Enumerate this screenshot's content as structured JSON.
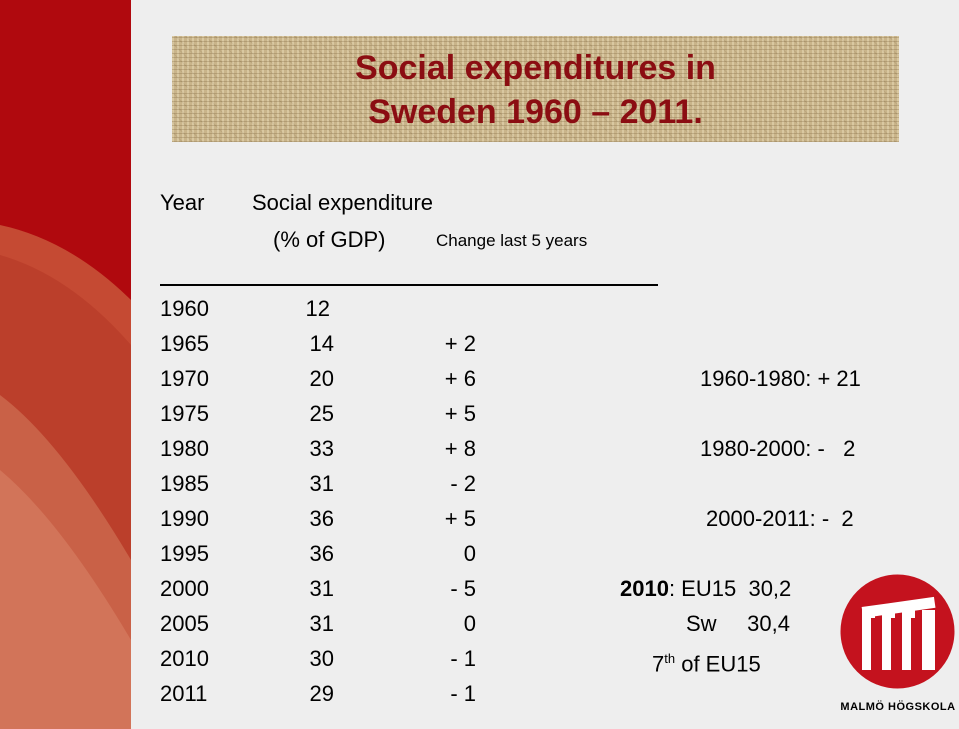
{
  "title": {
    "line1": "Social expenditures in",
    "line2": "Sweden 1960 – 2011."
  },
  "header": {
    "year": "Year",
    "social_expenditure": "Social expenditure",
    "percent_gdp": "(% of GDP)",
    "change": "Change last 5 years"
  },
  "rows": [
    {
      "year": "1960",
      "value": "12",
      "change": ""
    },
    {
      "year": "1965",
      "value": "14",
      "change": "+ 2"
    },
    {
      "year": "1970",
      "value": "20",
      "change": "+ 6"
    },
    {
      "year": "1975",
      "value": "25",
      "change": "+ 5"
    },
    {
      "year": "1980",
      "value": "33",
      "change": "+ 8"
    },
    {
      "year": "1985",
      "value": "31",
      "change": "- 2"
    },
    {
      "year": "1990",
      "value": "36",
      "change": "+ 5"
    },
    {
      "year": "1995",
      "value": "36",
      "change": "0"
    },
    {
      "year": "2000",
      "value": "31",
      "change": "- 5"
    },
    {
      "year": "2005",
      "value": "31",
      "change": "0"
    },
    {
      "year": "2010",
      "value": "30",
      "change": "- 1"
    },
    {
      "year": "2011",
      "value": "29",
      "change": "- 1"
    }
  ],
  "periods": [
    {
      "label": "1960-1980:",
      "value": "+ 21"
    },
    {
      "label": "1980-2000:",
      "value": "-   2"
    },
    {
      "label": "2000-2011:",
      "value": "-  2"
    }
  ],
  "comparison": {
    "year_label": "2010",
    "eu15_label": ": EU15",
    "eu15_value": "30,2",
    "sw_label": "Sw",
    "sw_value": "30,4",
    "rank_number": "7",
    "rank_suffix": "th",
    "rank_rest": " of EU15"
  },
  "logo": {
    "text": "MALMÖ HÖGSKOLA",
    "icon": "malmo-hogskola-logo-icon"
  },
  "colors": {
    "title": "#8b0d12",
    "sidebar_dark": "#b0090e",
    "sidebar_light": "#cf6a4e",
    "logo": "#c4121e"
  }
}
